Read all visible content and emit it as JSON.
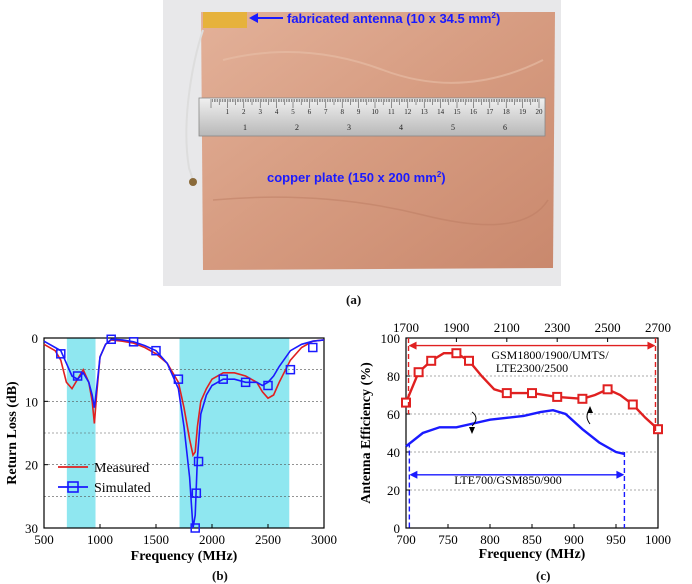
{
  "photo": {
    "antenna_label": "fabricated antenna (10 x 34.5 mm",
    "antenna_label_sup": "2",
    "antenna_label_end": ")",
    "plate_label": "copper plate (150 x 200 mm",
    "plate_label_sup": "2",
    "plate_label_end": ")",
    "ruler_top_numbers": [
      "1",
      "2",
      "3",
      "4",
      "5",
      "6",
      "7",
      "8",
      "9",
      "10",
      "11",
      "12",
      "13",
      "14",
      "15",
      "16",
      "17",
      "18",
      "19",
      "20"
    ],
    "ruler_bottom_numbers": [
      "1",
      "2",
      "3",
      "4",
      "5",
      "6"
    ],
    "colors": {
      "copper": "#d9a184",
      "arrow": "#1a1aff",
      "label": "#1a1aff"
    }
  },
  "captions": {
    "a": "(a)",
    "b": "(b)",
    "c": "(c)"
  },
  "chart_data": [
    {
      "type": "line",
      "xlabel": "Frequency (MHz)",
      "ylabel": "Return Loss (dB)",
      "xlim": [
        500,
        3000
      ],
      "ylim": [
        0,
        30
      ],
      "y_inverted": true,
      "xticks": [
        500,
        1000,
        1500,
        2000,
        2500,
        3000
      ],
      "yticks": [
        0,
        10,
        20,
        30
      ],
      "grid": "dotted",
      "legend_position": "bottom-left",
      "shaded_bands": [
        [
          704,
          960
        ],
        [
          1710,
          2690
        ]
      ],
      "series": [
        {
          "name": "Measured",
          "color": "#e02020",
          "x": [
            500,
            600,
            650,
            700,
            750,
            800,
            850,
            900,
            930,
            950,
            970,
            1000,
            1050,
            1100,
            1200,
            1300,
            1400,
            1500,
            1600,
            1700,
            1750,
            1800,
            1830,
            1850,
            1870,
            1900,
            1950,
            2000,
            2100,
            2200,
            2300,
            2400,
            2450,
            2500,
            2550,
            2600,
            2700,
            2800,
            2900,
            3000
          ],
          "y": [
            1.0,
            2.0,
            3.5,
            7.0,
            8.0,
            6.5,
            5.0,
            7.0,
            10.0,
            13.5,
            9.0,
            3.0,
            1.0,
            0.3,
            0.5,
            0.8,
            1.5,
            2.5,
            4.0,
            7.0,
            11.0,
            16.0,
            18.5,
            18.0,
            14.0,
            10.0,
            8.0,
            6.5,
            5.5,
            5.5,
            6.0,
            7.0,
            8.5,
            9.5,
            9.0,
            7.0,
            3.5,
            1.5,
            0.5,
            0.3
          ]
        },
        {
          "name": "Simulated",
          "color": "#1a1aff",
          "marker": "square",
          "x": [
            500,
            600,
            650,
            700,
            750,
            800,
            850,
            900,
            930,
            950,
            970,
            1000,
            1050,
            1100,
            1200,
            1300,
            1400,
            1500,
            1600,
            1700,
            1750,
            1800,
            1830,
            1850,
            1870,
            1900,
            1950,
            2000,
            2100,
            2200,
            2300,
            2400,
            2450,
            2500,
            2550,
            2600,
            2700,
            2800,
            2900,
            3000
          ],
          "y": [
            0.5,
            1.5,
            2.0,
            4.0,
            6.0,
            6.5,
            5.5,
            7.0,
            9.0,
            11.0,
            8.0,
            3.0,
            1.0,
            0.2,
            0.3,
            0.6,
            1.2,
            2.0,
            4.0,
            8.0,
            14.0,
            22.0,
            30.0,
            28.0,
            19.0,
            12.0,
            9.0,
            7.5,
            6.5,
            6.5,
            7.0,
            7.0,
            7.5,
            7.0,
            6.0,
            4.5,
            2.0,
            1.0,
            0.5,
            0.3
          ]
        }
      ],
      "marker_points": [
        {
          "x": 650,
          "y": 2.5
        },
        {
          "x": 800,
          "y": 6.0
        },
        {
          "x": 1100,
          "y": 0.2
        },
        {
          "x": 1300,
          "y": 0.6
        },
        {
          "x": 1500,
          "y": 2.0
        },
        {
          "x": 1700,
          "y": 6.5
        },
        {
          "x": 1850,
          "y": 30.0
        },
        {
          "x": 1860,
          "y": 24.5
        },
        {
          "x": 1880,
          "y": 19.5
        },
        {
          "x": 2100,
          "y": 6.5
        },
        {
          "x": 2300,
          "y": 7.0
        },
        {
          "x": 2500,
          "y": 7.5
        },
        {
          "x": 2700,
          "y": 5.0
        },
        {
          "x": 2900,
          "y": 1.5
        }
      ]
    },
    {
      "type": "line",
      "xlabel": "Frequency (MHz)",
      "ylabel": "Antenna Efficiency (%)",
      "xlim": [
        700,
        1000
      ],
      "ylim": [
        0,
        100
      ],
      "xticks": [
        700,
        750,
        800,
        850,
        900,
        950,
        1000
      ],
      "yticks": [
        0,
        20,
        40,
        60,
        80,
        100
      ],
      "top_xlim": [
        1700,
        2700
      ],
      "top_xticks": [
        1700,
        1900,
        2100,
        2300,
        2500,
        2700
      ],
      "grid": "dotted",
      "annotations": [
        {
          "text": "GSM1800/1900/UMTS/",
          "x": 880,
          "y": 94
        },
        {
          "text": "LTE2300/2500",
          "x": 870,
          "y": 86
        },
        {
          "text": "LTE700/GSM850/900",
          "x": 820,
          "y": 25
        }
      ],
      "series": [
        {
          "name": "GSM1800/1900/UMTS/LTE2300/2500",
          "color": "#e02020",
          "marker": "square",
          "axis": "top",
          "x": [
            1700,
            1750,
            1800,
            1850,
            1900,
            1950,
            2000,
            2050,
            2100,
            2200,
            2300,
            2400,
            2450,
            2500,
            2550,
            2600,
            2650,
            2700
          ],
          "y": [
            66,
            82,
            88,
            92,
            92,
            88,
            80,
            73,
            71,
            71,
            69,
            68,
            70,
            73,
            70,
            65,
            58,
            52
          ]
        },
        {
          "name": "LTE700/GSM850/900",
          "color": "#1a1aff",
          "axis": "bottom",
          "x": [
            700,
            720,
            740,
            760,
            780,
            800,
            820,
            840,
            860,
            875,
            890,
            910,
            930,
            950,
            960
          ],
          "y": [
            43,
            50,
            53,
            53,
            55,
            57,
            58,
            59,
            61,
            62,
            60,
            52,
            45,
            40,
            39
          ]
        }
      ],
      "red_markers_top": [
        1700,
        1750,
        1800,
        1900,
        1950,
        2100,
        2200,
        2300,
        2400,
        2500,
        2600,
        2700
      ],
      "band_top": [
        1710,
        2690
      ],
      "band_bottom": [
        704,
        960
      ]
    }
  ]
}
